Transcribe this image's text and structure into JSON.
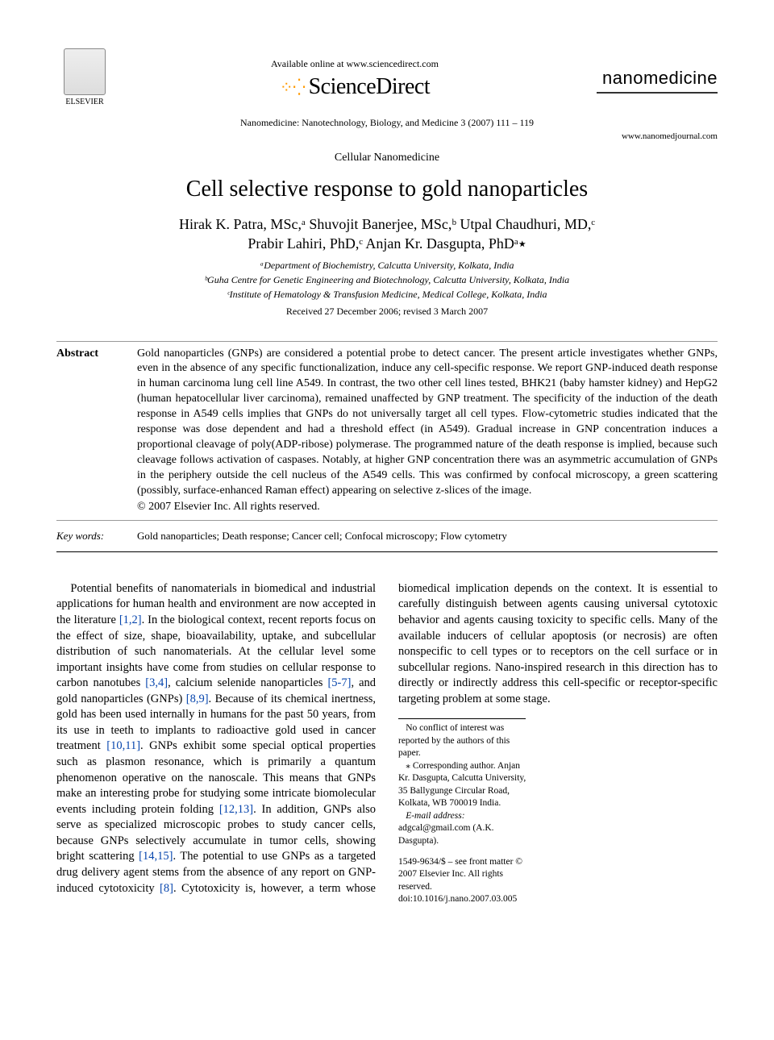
{
  "header": {
    "publisher": "ELSEVIER",
    "available_online": "Available online at www.sciencedirect.com",
    "platform_name": "ScienceDirect",
    "journal_logo": "nanomedicine",
    "journal_ref": "Nanomedicine: Nanotechnology, Biology, and Medicine 3 (2007) 111 – 119",
    "site_url": "www.nanomedjournal.com"
  },
  "article": {
    "section_label": "Cellular Nanomedicine",
    "title": "Cell selective response to gold nanoparticles",
    "authors_line1": "Hirak K. Patra, MSc,ᵃ Shuvojit Banerjee, MSc,ᵇ Utpal Chaudhuri, MD,ᶜ",
    "authors_line2": "Prabir Lahiri, PhD,ᶜ Anjan Kr. Dasgupta, PhDᵃ٭",
    "affiliations": [
      "ᵃDepartment of Biochemistry, Calcutta University, Kolkata, India",
      "ᵇGuha Centre for Genetic Engineering and Biotechnology, Calcutta University, Kolkata, India",
      "ᶜInstitute of Hematology & Transfusion Medicine, Medical College, Kolkata, India"
    ],
    "dates": "Received 27 December 2006; revised 3 March 2007"
  },
  "abstract": {
    "label": "Abstract",
    "text": "Gold nanoparticles (GNPs) are considered a potential probe to detect cancer. The present article investigates whether GNPs, even in the absence of any specific functionalization, induce any cell-specific response. We report GNP-induced death response in human carcinoma lung cell line A549. In contrast, the two other cell lines tested, BHK21 (baby hamster kidney) and HepG2 (human hepatocellular liver carcinoma), remained unaffected by GNP treatment. The specificity of the induction of the death response in A549 cells implies that GNPs do not universally target all cell types. Flow-cytometric studies indicated that the response was dose dependent and had a threshold effect (in A549). Gradual increase in GNP concentration induces a proportional cleavage of poly(ADP-ribose) polymerase. The programmed nature of the death response is implied, because such cleavage follows activation of caspases. Notably, at higher GNP concentration there was an asymmetric accumulation of GNPs in the periphery outside the cell nucleus of the A549 cells. This was confirmed by confocal microscopy, a green scattering (possibly, surface-enhanced Raman effect) appearing on selective z-slices of the image.",
    "copyright": "© 2007 Elsevier Inc. All rights reserved."
  },
  "keywords": {
    "label": "Key words:",
    "text": "Gold nanoparticles; Death response; Cancer cell; Confocal microscopy; Flow cytometry"
  },
  "body": {
    "para1_a": "Potential benefits of nanomaterials in biomedical and industrial applications for human health and environment are now accepted in the literature ",
    "ref1": "[1,2]",
    "para1_b": ". In the biological context, recent reports focus on the effect of size, shape, bioavailability, uptake, and subcellular distribution of such nanomaterials. At the cellular level some important insights have come from studies on cellular response to carbon nanotubes ",
    "ref2": "[3,4]",
    "para1_c": ", calcium selenide nanoparticles ",
    "ref3": "[5-7]",
    "para1_d": ", and gold nanoparticles (GNPs) ",
    "ref4": "[8,9]",
    "para1_e": ". Because of its chemical inertness, gold has been used internally in humans for the past 50 years, from its use in teeth to implants to radioactive gold used in cancer treatment ",
    "ref5": "[10,11]",
    "para1_f": ". GNPs exhibit some special optical properties such as plasmon resonance, which is primarily a ",
    "para2_a": "quantum phenomenon operative on the nanoscale. This means that GNPs make an interesting probe for studying some intricate biomolecular events including protein folding ",
    "ref6": "[12,13]",
    "para2_b": ". In addition, GNPs also serve as specialized microscopic probes to study cancer cells, because GNPs selectively accumulate in tumor cells, showing bright scattering ",
    "ref7": "[14,15]",
    "para2_c": ". The potential to use GNPs as a targeted drug delivery agent stems from the absence of any report on GNP-induced cytotoxicity ",
    "ref8": "[8]",
    "para2_d": ". Cytotoxicity is, however, a term whose biomedical implication depends on the context. It is essential to carefully distinguish between agents causing universal cytotoxic behavior and agents causing toxicity to specific cells. Many of the available inducers of cellular apoptosis (or necrosis) are often nonspecific to cell types or to receptors on the cell surface or in subcellular regions. Nano-inspired research in this direction has to directly or indirectly address this cell-specific or receptor-specific targeting problem at some stage."
  },
  "footnotes": {
    "conflict": "No conflict of interest was reported by the authors of this paper.",
    "corresponding": "⁎ Corresponding author. Anjan Kr. Dasgupta, Calcutta University, 35 Ballygunge Circular Road, Kolkata, WB 700019 India.",
    "email_label": "E-mail address:",
    "email": "adgcal@gmail.com (A.K. Dasgupta).",
    "issn": "1549-9634/$ – see front matter © 2007 Elsevier Inc. All rights reserved.",
    "doi": "doi:10.1016/j.nano.2007.03.005"
  },
  "refs_color": "#0645ad"
}
